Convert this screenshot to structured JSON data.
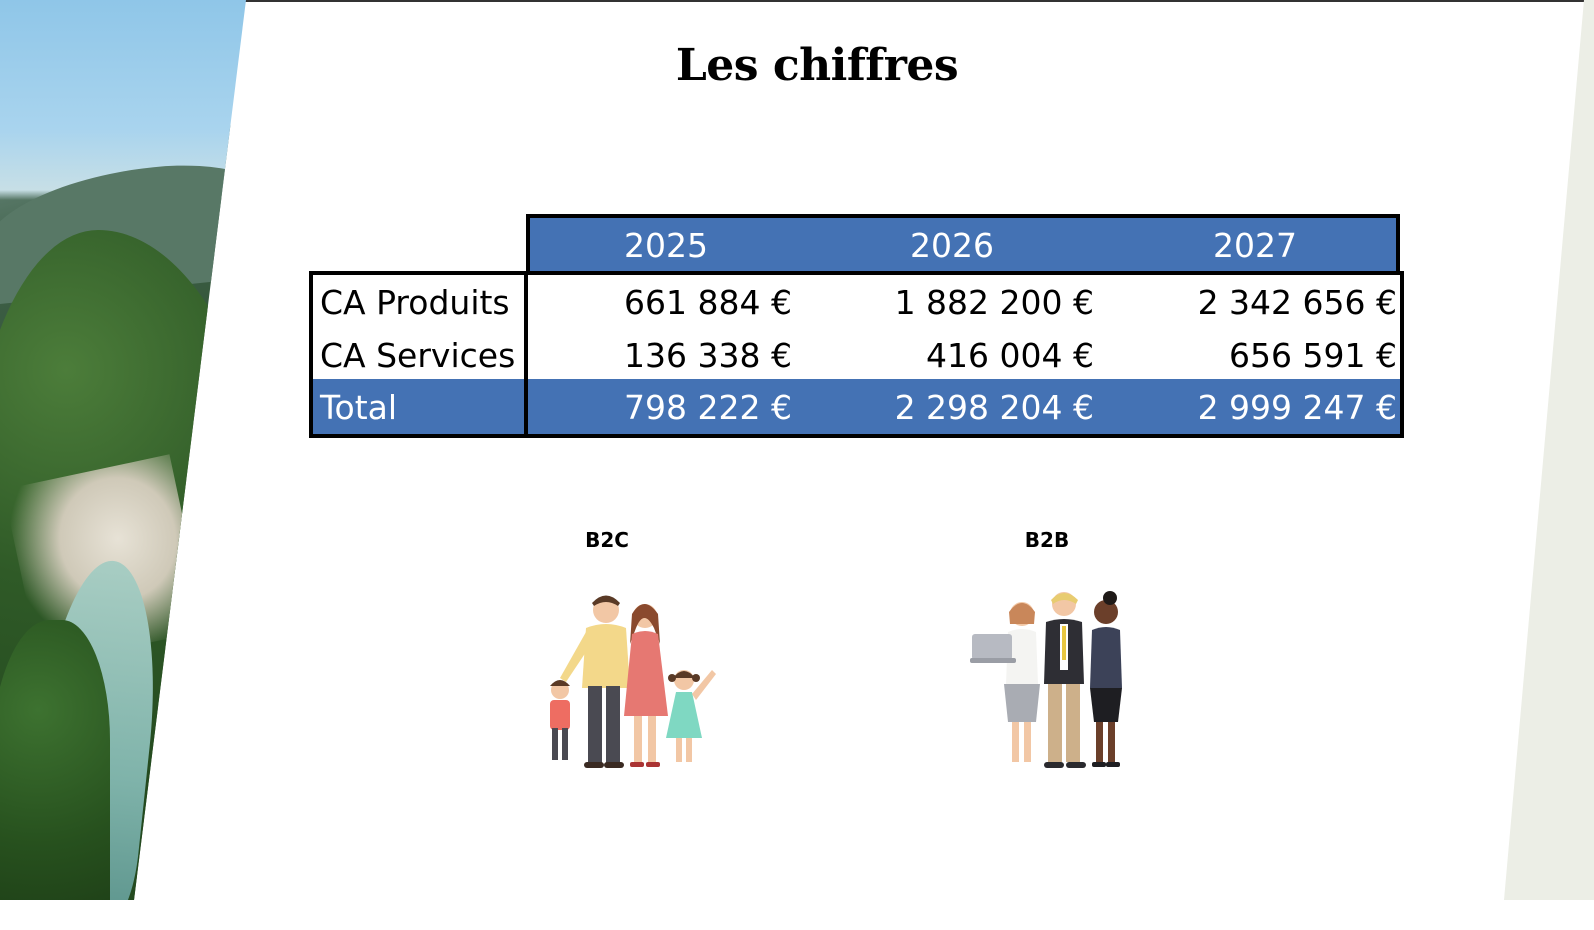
{
  "slide": {
    "title": "Les chiffres"
  },
  "table": {
    "years": [
      "2025",
      "2026",
      "2027"
    ],
    "rows": [
      {
        "label": "CA Produits",
        "values": [
          "661 884 €",
          "1 882 200 €",
          "2 342 656 €"
        ]
      },
      {
        "label": "CA Services",
        "values": [
          "136 338 €",
          "416 004 €",
          "656 591 €"
        ]
      }
    ],
    "total": {
      "label": "Total",
      "values": [
        "798 222 €",
        "2 298 204 €",
        "2 999 247 €"
      ]
    },
    "colors": {
      "header": "#4472b4",
      "border": "#000000"
    }
  },
  "segments": {
    "b2c": {
      "label": "B2C",
      "illustration": "family-illustration"
    },
    "b2b": {
      "label": "B2B",
      "illustration": "business-team-illustration"
    }
  }
}
